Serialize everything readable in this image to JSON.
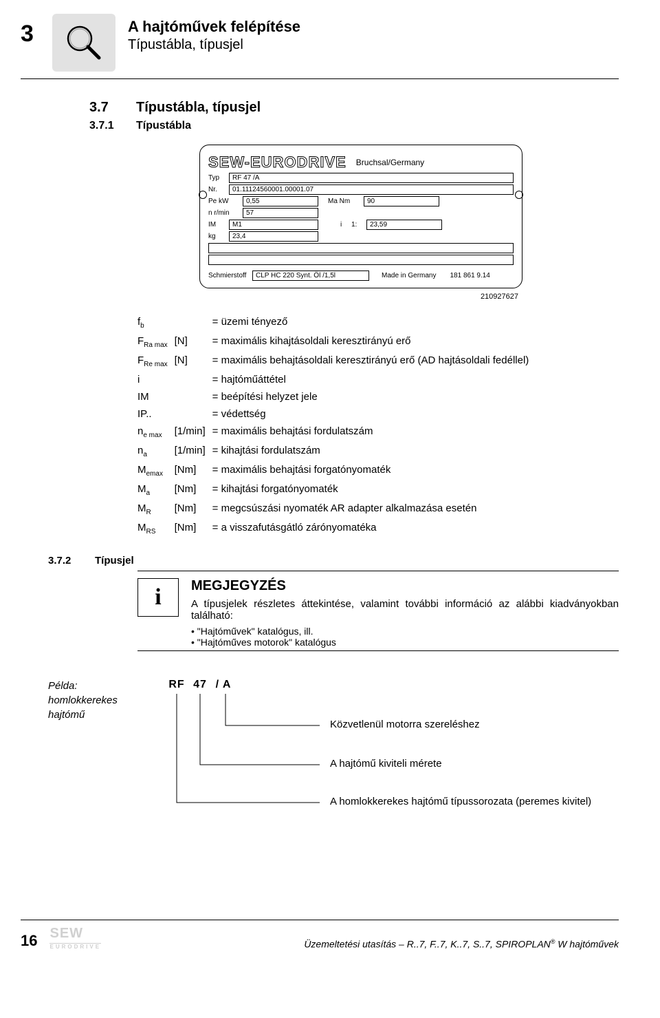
{
  "chapter_number": "3",
  "header_title": "A hajtóművek felépítése",
  "header_subtitle": "Típustábla, típusjel",
  "sec_num": "3.7",
  "sec_title": "Típustábla, típusjel",
  "sub_num": "3.7.1",
  "sub_title": "Típustábla",
  "plate": {
    "brand": "SEW-EURODRIVE",
    "city": "Bruchsal/Germany",
    "typ_lbl": "Typ",
    "typ_val": "RF 47 /A",
    "nr_lbl": "Nr.",
    "nr_val": "01.11124560001.00001.07",
    "pe_lbl": "Pe  kW",
    "pe_val": "0,55",
    "ma_lbl": "Ma  Nm",
    "ma_val": "90",
    "n_lbl": "n  r/min",
    "n_val": "57",
    "im_lbl": "IM",
    "im_val": "M1",
    "i_lbl": "i",
    "i_colon": "1:",
    "i_val": "23,59",
    "kg_lbl": "kg",
    "kg_val": "23,4",
    "lub_lbl": "Schmierstoff",
    "lub_val": "CLP HC 220 Synt. Öl /1,5l",
    "made": "Made in Germany",
    "ref": "181 861 9.14",
    "id": "210927627"
  },
  "defs": [
    {
      "sym": "f<sub>b</sub>",
      "unit": "",
      "txt": "= üzemi tényező"
    },
    {
      "sym": "F<sub>Ra max</sub>",
      "unit": "[N]",
      "txt": "= maximális kihajtásoldali keresztirányú erő"
    },
    {
      "sym": "F<sub>Re max</sub>",
      "unit": "[N]",
      "txt": "= maximális behajtásoldali keresztirányú erő (AD hajtásoldali fedéllel)"
    },
    {
      "sym": "i",
      "unit": "",
      "txt": "= hajtóműáttétel"
    },
    {
      "sym": "IM",
      "unit": "",
      "txt": "= beépítési helyzet jele"
    },
    {
      "sym": "IP..",
      "unit": "",
      "txt": "= védettség"
    },
    {
      "sym": "n<sub>e max</sub>",
      "unit": "[1/min]",
      "txt": "= maximális behajtási fordulatszám"
    },
    {
      "sym": "n<sub>a</sub>",
      "unit": "[1/min]",
      "txt": "= kihajtási fordulatszám"
    },
    {
      "sym": "M<sub>emax</sub>",
      "unit": "[Nm]",
      "txt": "= maximális behajtási forgatónyomaték"
    },
    {
      "sym": "M<sub>a</sub>",
      "unit": "[Nm]",
      "txt": "= kihajtási forgatónyomaték"
    },
    {
      "sym": "M<sub>R</sub>",
      "unit": "[Nm]",
      "txt": "= megcsúszási nyomaték AR adapter alkalmazása esetén"
    },
    {
      "sym": "M<sub>RS</sub>",
      "unit": "[Nm]",
      "txt": "= a visszafutásgátló zárónyomatéka"
    }
  ],
  "sub2_num": "3.7.2",
  "sub2_title": "Típusjel",
  "note": {
    "title": "MEGJEGYZÉS",
    "text": "A típusjelek részletes áttekintése, valamint további információ az alábbi kiadványokban található:",
    "li1": "\"Hajtóművek\" katalógus, ill.",
    "li2": "\"Hajtóműves motorok\" katalógus"
  },
  "example": {
    "label": "Példa:\nhomlokkerekes\nhajtómű",
    "code1": "RF",
    "code2": "47",
    "code3": "/ A",
    "e1": "Közvetlenül motorra szereléshez",
    "e2": "A hajtómű kiviteli mérete",
    "e3": "A homlokkerekes hajtómű típussorozata (peremes kivitel)"
  },
  "footer": {
    "pagenum": "16",
    "logo": "SEW",
    "logo_sub": "EURODRIVE",
    "doc": "Üzemeltetési utasítás – R..7, F..7, K..7, S..7, SPIROPLAN",
    "doc_sup": "®",
    "doc_tail": " W hajtóművek"
  }
}
